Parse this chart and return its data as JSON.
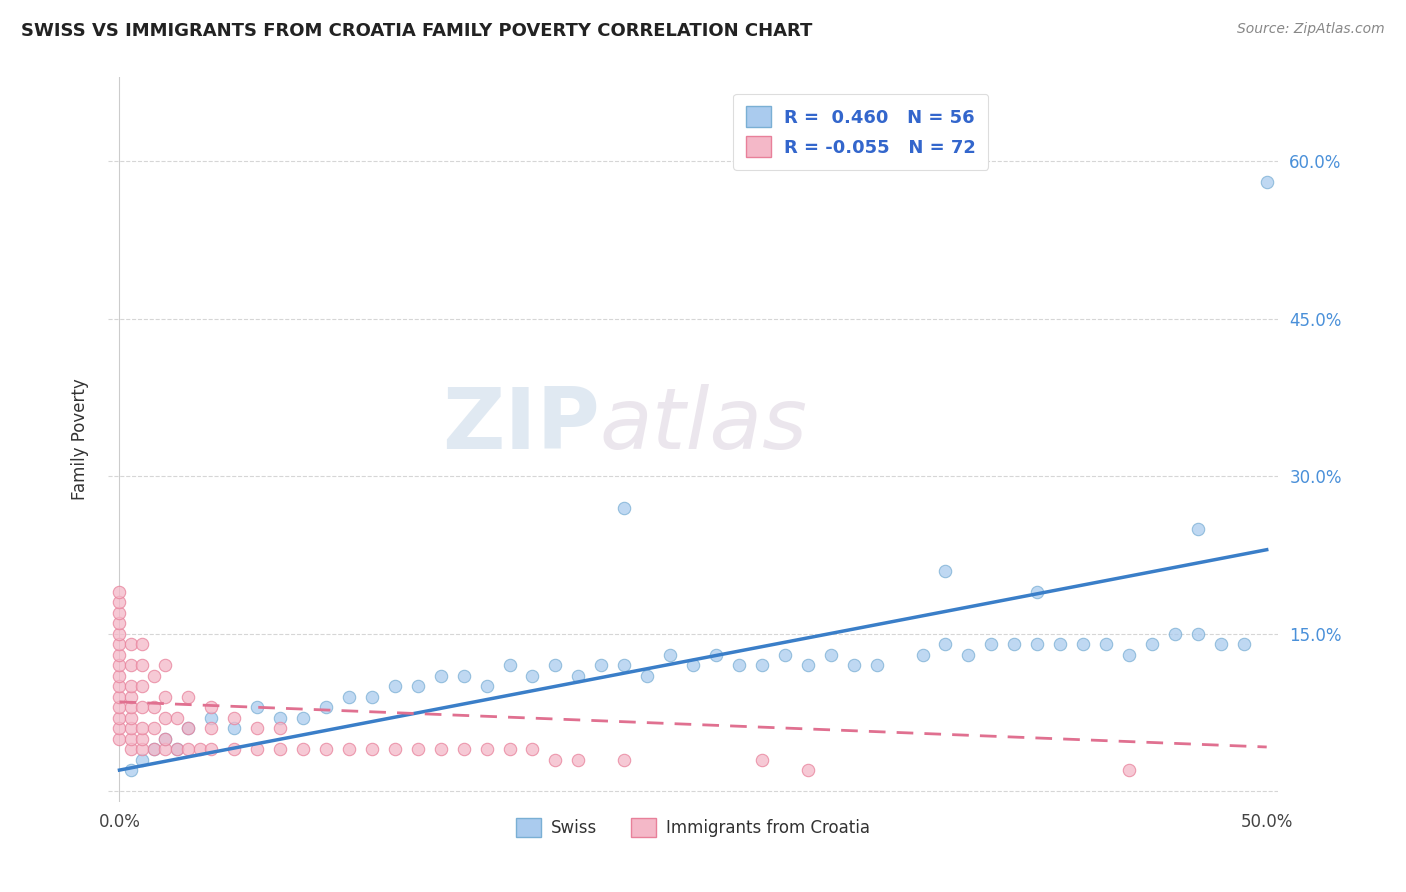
{
  "title": "SWISS VS IMMIGRANTS FROM CROATIA FAMILY POVERTY CORRELATION CHART",
  "source": "Source: ZipAtlas.com",
  "ylabel": "Family Poverty",
  "xlim": [
    -0.005,
    0.505
  ],
  "ylim": [
    -0.01,
    0.68
  ],
  "yticks": [
    0.0,
    0.15,
    0.3,
    0.45,
    0.6
  ],
  "xticks": [
    0.0,
    0.1,
    0.2,
    0.3,
    0.4,
    0.5
  ],
  "xtick_labels": [
    "0.0%",
    "",
    "",
    "",
    "",
    "50.0%"
  ],
  "right_ytick_labels": [
    "",
    "15.0%",
    "30.0%",
    "45.0%",
    "60.0%"
  ],
  "watermark_zip": "ZIP",
  "watermark_atlas": "atlas",
  "swiss_color": "#aacbee",
  "swiss_edge_color": "#7aafd4",
  "croatia_color": "#f4b8c8",
  "croatia_edge_color": "#e8809a",
  "swiss_line_color": "#3a7ec8",
  "croatia_line_color": "#e07090",
  "swiss_R": 0.46,
  "swiss_N": 56,
  "croatia_R": -0.055,
  "croatia_N": 72,
  "swiss_x": [
    0.005,
    0.01,
    0.015,
    0.02,
    0.025,
    0.03,
    0.04,
    0.05,
    0.06,
    0.07,
    0.08,
    0.09,
    0.1,
    0.11,
    0.12,
    0.13,
    0.14,
    0.15,
    0.16,
    0.17,
    0.18,
    0.19,
    0.2,
    0.21,
    0.22,
    0.23,
    0.24,
    0.25,
    0.26,
    0.27,
    0.28,
    0.29,
    0.3,
    0.31,
    0.32,
    0.33,
    0.35,
    0.36,
    0.37,
    0.38,
    0.39,
    0.4,
    0.41,
    0.42,
    0.43,
    0.44,
    0.45,
    0.46,
    0.47,
    0.48,
    0.22,
    0.36,
    0.47,
    0.4,
    0.49,
    0.5
  ],
  "swiss_y": [
    0.02,
    0.03,
    0.04,
    0.05,
    0.04,
    0.06,
    0.07,
    0.06,
    0.08,
    0.07,
    0.07,
    0.08,
    0.09,
    0.09,
    0.1,
    0.1,
    0.11,
    0.11,
    0.1,
    0.12,
    0.11,
    0.12,
    0.11,
    0.12,
    0.12,
    0.11,
    0.13,
    0.12,
    0.13,
    0.12,
    0.12,
    0.13,
    0.12,
    0.13,
    0.12,
    0.12,
    0.13,
    0.14,
    0.13,
    0.14,
    0.14,
    0.14,
    0.14,
    0.14,
    0.14,
    0.13,
    0.14,
    0.15,
    0.15,
    0.14,
    0.27,
    0.21,
    0.25,
    0.19,
    0.14,
    0.58
  ],
  "croatia_x": [
    0.0,
    0.0,
    0.0,
    0.0,
    0.0,
    0.0,
    0.0,
    0.0,
    0.0,
    0.0,
    0.0,
    0.0,
    0.0,
    0.0,
    0.0,
    0.005,
    0.005,
    0.005,
    0.005,
    0.005,
    0.005,
    0.005,
    0.005,
    0.005,
    0.01,
    0.01,
    0.01,
    0.01,
    0.01,
    0.01,
    0.01,
    0.015,
    0.015,
    0.015,
    0.015,
    0.02,
    0.02,
    0.02,
    0.02,
    0.02,
    0.025,
    0.025,
    0.03,
    0.03,
    0.03,
    0.035,
    0.04,
    0.04,
    0.04,
    0.05,
    0.05,
    0.06,
    0.06,
    0.07,
    0.07,
    0.08,
    0.09,
    0.1,
    0.11,
    0.12,
    0.13,
    0.14,
    0.15,
    0.16,
    0.17,
    0.18,
    0.19,
    0.2,
    0.22,
    0.28,
    0.3,
    0.44
  ],
  "croatia_y": [
    0.05,
    0.06,
    0.07,
    0.08,
    0.09,
    0.1,
    0.11,
    0.12,
    0.13,
    0.14,
    0.15,
    0.16,
    0.17,
    0.18,
    0.19,
    0.04,
    0.05,
    0.06,
    0.07,
    0.08,
    0.09,
    0.1,
    0.12,
    0.14,
    0.04,
    0.05,
    0.06,
    0.08,
    0.1,
    0.12,
    0.14,
    0.04,
    0.06,
    0.08,
    0.11,
    0.04,
    0.05,
    0.07,
    0.09,
    0.12,
    0.04,
    0.07,
    0.04,
    0.06,
    0.09,
    0.04,
    0.04,
    0.06,
    0.08,
    0.04,
    0.07,
    0.04,
    0.06,
    0.04,
    0.06,
    0.04,
    0.04,
    0.04,
    0.04,
    0.04,
    0.04,
    0.04,
    0.04,
    0.04,
    0.04,
    0.04,
    0.03,
    0.03,
    0.03,
    0.03,
    0.02,
    0.02
  ],
  "swiss_line_x": [
    0.0,
    0.5
  ],
  "swiss_line_y": [
    0.02,
    0.23
  ],
  "croatia_line_x": [
    0.0,
    0.5
  ],
  "croatia_line_y": [
    0.085,
    0.042
  ]
}
